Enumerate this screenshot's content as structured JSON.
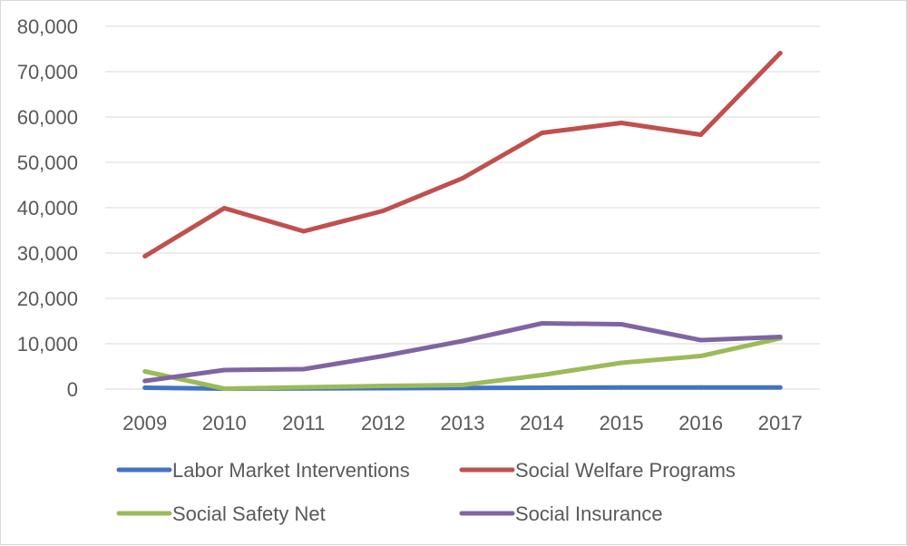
{
  "chart_data": {
    "type": "line",
    "title": "",
    "xlabel": "",
    "ylabel": "",
    "x": [
      "2009",
      "2010",
      "2011",
      "2012",
      "2013",
      "2014",
      "2015",
      "2016",
      "2017"
    ],
    "ylim": [
      0,
      80000
    ],
    "yticks": [
      0,
      10000,
      20000,
      30000,
      40000,
      50000,
      60000,
      70000,
      80000
    ],
    "ytick_labels": [
      "0",
      "10,000",
      "20,000",
      "30,000",
      "40,000",
      "50,000",
      "60,000",
      "70,000",
      "80,000"
    ],
    "grid": true,
    "legend_position": "bottom",
    "series": [
      {
        "name": "Labor Market Interventions",
        "color": "#4472c4",
        "values": [
          300,
          100,
          150,
          200,
          250,
          300,
          350,
          350,
          350
        ]
      },
      {
        "name": "Social Welfare Programs",
        "color": "#c0504d",
        "values": [
          29300,
          39900,
          34800,
          39300,
          46500,
          56500,
          58700,
          56100,
          74100
        ]
      },
      {
        "name": "Social Safety Net",
        "color": "#9bbb59",
        "values": [
          3900,
          100,
          400,
          700,
          900,
          3100,
          5800,
          7300,
          11200
        ]
      },
      {
        "name": "Social Insurance",
        "color": "#8064a2",
        "values": [
          1800,
          4200,
          4400,
          7300,
          10600,
          14500,
          14300,
          10800,
          11500
        ]
      }
    ]
  }
}
